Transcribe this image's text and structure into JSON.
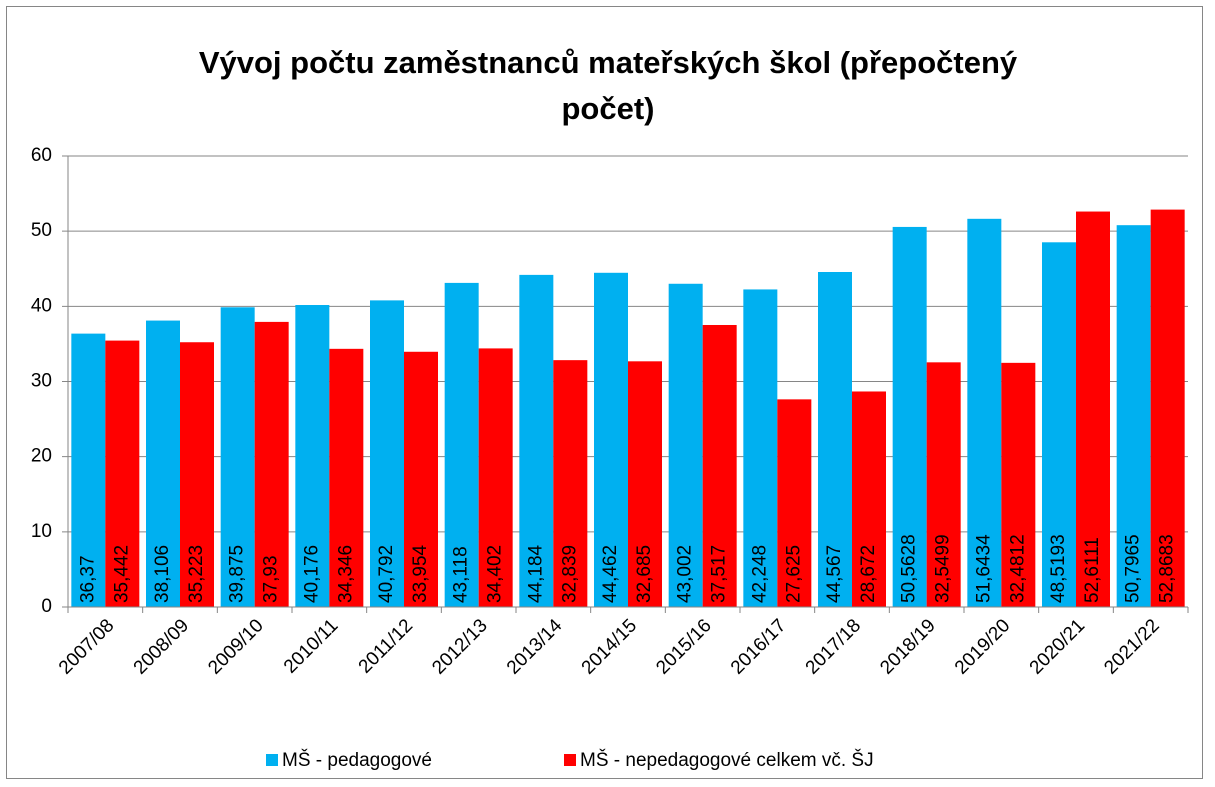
{
  "chart_data": {
    "type": "bar",
    "title": "Vývoj počtu zaměstnanců mateřských škol (přepočtený počet)",
    "categories": [
      "2007/08",
      "2008/09",
      "2009/10",
      "2010/11",
      "2011/12",
      "2012/13",
      "2013/14",
      "2014/15",
      "2015/16",
      "2016/17",
      "2017/18",
      "2018/19",
      "2019/20",
      "2020/21",
      "2021/22"
    ],
    "series": [
      {
        "name": "MŠ - pedagogové",
        "color": "#00b0f0",
        "values": [
          36.37,
          38.106,
          39.875,
          40.176,
          40.792,
          43.118,
          44.184,
          44.462,
          43.002,
          42.248,
          44.567,
          50.5628,
          51.6434,
          48.5193,
          50.7965
        ],
        "value_labels": [
          "36,37",
          "38,106",
          "39,875",
          "40,176",
          "40,792",
          "43,118",
          "44,184",
          "44,462",
          "43,002",
          "42,248",
          "44,567",
          "50,5628",
          "51,6434",
          "48,5193",
          "50,7965"
        ]
      },
      {
        "name": "MŠ - nepedagogové celkem vč. ŠJ",
        "color": "#ff0000",
        "values": [
          35.442,
          35.223,
          37.93,
          34.346,
          33.954,
          34.402,
          32.839,
          32.685,
          37.517,
          27.625,
          28.672,
          32.5499,
          32.4812,
          52.6111,
          52.8683
        ],
        "value_labels": [
          "35,442",
          "35,223",
          "37,93",
          "34,346",
          "33,954",
          "34,402",
          "32,839",
          "32,685",
          "37,517",
          "27,625",
          "28,672",
          "32,5499",
          "32,4812",
          "52,6111",
          "52,8683"
        ]
      }
    ],
    "ylim": [
      0,
      60
    ],
    "yticks": [
      0,
      10,
      20,
      30,
      40,
      50,
      60
    ],
    "grid": true,
    "legend": "bottom"
  }
}
